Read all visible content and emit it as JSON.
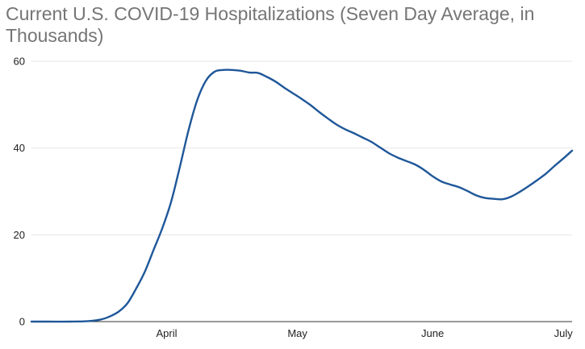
{
  "chart_data": {
    "type": "line",
    "title": "Current U.S. COVID-19 Hospitalizations (Seven Day Average, in Thousands)",
    "xlabel": "",
    "ylabel": "",
    "ylim": [
      0,
      60
    ],
    "yticks": [
      0,
      20,
      40,
      60
    ],
    "xticks": [
      {
        "label": "April",
        "x": "2020-04-01"
      },
      {
        "label": "May",
        "x": "2020-05-01"
      },
      {
        "label": "June",
        "x": "2020-06-01"
      },
      {
        "label": "July",
        "x": "2020-07-01"
      }
    ],
    "xlim": [
      "2020-03-01",
      "2020-07-03"
    ],
    "grid": true,
    "color": "#1f5799",
    "series": [
      {
        "x": [
          "2020-03-01",
          "2020-03-05",
          "2020-03-10",
          "2020-03-14",
          "2020-03-17",
          "2020-03-19",
          "2020-03-21",
          "2020-03-23",
          "2020-03-25",
          "2020-03-27",
          "2020-03-29",
          "2020-03-31",
          "2020-04-02",
          "2020-04-04",
          "2020-04-06",
          "2020-04-08",
          "2020-04-10",
          "2020-04-12",
          "2020-04-14",
          "2020-04-16",
          "2020-04-18",
          "2020-04-20",
          "2020-04-22",
          "2020-04-24",
          "2020-04-26",
          "2020-04-28",
          "2020-04-30",
          "2020-05-02",
          "2020-05-04",
          "2020-05-06",
          "2020-05-08",
          "2020-05-10",
          "2020-05-12",
          "2020-05-14",
          "2020-05-16",
          "2020-05-18",
          "2020-05-20",
          "2020-05-22",
          "2020-05-24",
          "2020-05-26",
          "2020-05-28",
          "2020-05-30",
          "2020-06-01",
          "2020-06-03",
          "2020-06-05",
          "2020-06-07",
          "2020-06-09",
          "2020-06-11",
          "2020-06-13",
          "2020-06-15",
          "2020-06-17",
          "2020-06-19",
          "2020-06-21",
          "2020-06-23",
          "2020-06-25",
          "2020-06-27",
          "2020-06-29",
          "2020-07-01",
          "2020-07-03"
        ],
        "values": [
          0.0,
          0.0,
          0.0,
          0.1,
          0.5,
          1.2,
          2.3,
          4.2,
          7.6,
          11.5,
          16.5,
          21.5,
          27.5,
          35.5,
          44.0,
          51.0,
          55.5,
          57.6,
          58.0,
          58.0,
          57.8,
          57.4,
          57.3,
          56.4,
          55.3,
          53.9,
          52.6,
          51.3,
          49.9,
          48.3,
          46.8,
          45.4,
          44.3,
          43.4,
          42.4,
          41.4,
          40.1,
          38.8,
          37.8,
          37.0,
          36.2,
          35.0,
          33.5,
          32.3,
          31.6,
          31.0,
          30.1,
          29.1,
          28.5,
          28.3,
          28.2,
          28.8,
          29.9,
          31.2,
          32.6,
          34.1,
          35.9,
          37.6,
          39.4
        ]
      }
    ]
  }
}
